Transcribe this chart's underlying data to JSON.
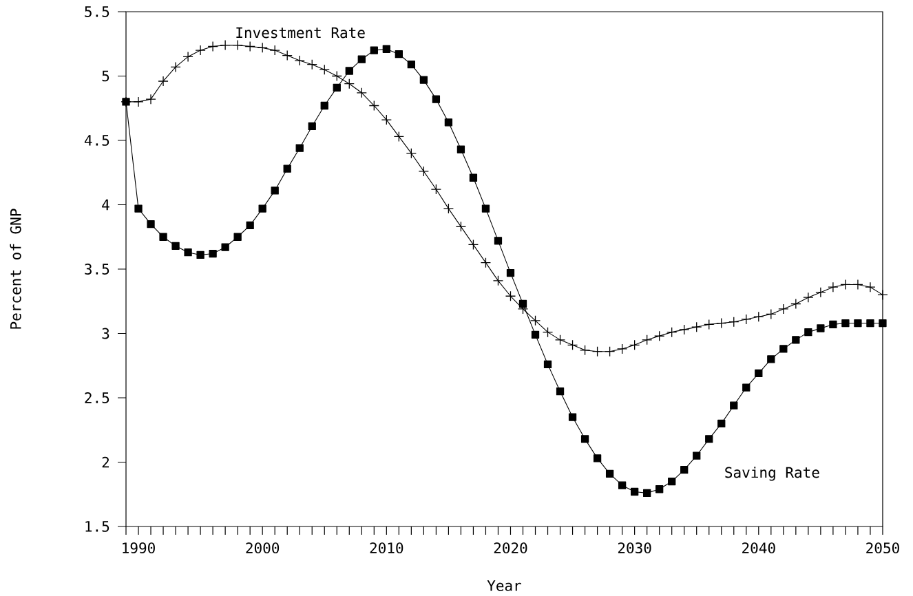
{
  "chart_data": {
    "type": "line",
    "xlabel": "Year",
    "ylabel": "Percent of GNP",
    "x": [
      1989,
      1990,
      1991,
      1992,
      1993,
      1994,
      1995,
      1996,
      1997,
      1998,
      1999,
      2000,
      2001,
      2002,
      2003,
      2004,
      2005,
      2006,
      2007,
      2008,
      2009,
      2010,
      2011,
      2012,
      2013,
      2014,
      2015,
      2016,
      2017,
      2018,
      2019,
      2020,
      2021,
      2022,
      2023,
      2024,
      2025,
      2026,
      2027,
      2028,
      2029,
      2030,
      2031,
      2032,
      2033,
      2034,
      2035,
      2036,
      2037,
      2038,
      2039,
      2040,
      2041,
      2042,
      2043,
      2044,
      2045,
      2046,
      2047,
      2048,
      2049,
      2050
    ],
    "xlim": [
      1989,
      2050
    ],
    "ylim": [
      1.5,
      5.5
    ],
    "xticks": [
      {
        "value": 1989,
        "label": null
      },
      1990,
      {
        "value": 1991,
        "label": null
      },
      {
        "value": 1992,
        "label": null
      },
      {
        "value": 1993,
        "label": null
      },
      {
        "value": 1994,
        "label": null
      },
      {
        "value": 1995,
        "label": null
      },
      {
        "value": 1996,
        "label": null
      },
      {
        "value": 1997,
        "label": null
      },
      {
        "value": 1998,
        "label": null
      },
      {
        "value": 1999,
        "label": null
      },
      2000,
      {
        "value": 2001,
        "label": null
      },
      {
        "value": 2002,
        "label": null
      },
      {
        "value": 2003,
        "label": null
      },
      {
        "value": 2004,
        "label": null
      },
      {
        "value": 2005,
        "label": null
      },
      {
        "value": 2006,
        "label": null
      },
      {
        "value": 2007,
        "label": null
      },
      {
        "value": 2008,
        "label": null
      },
      {
        "value": 2009,
        "label": null
      },
      2010,
      {
        "value": 2011,
        "label": null
      },
      {
        "value": 2012,
        "label": null
      },
      {
        "value": 2013,
        "label": null
      },
      {
        "value": 2014,
        "label": null
      },
      {
        "value": 2015,
        "label": null
      },
      {
        "value": 2016,
        "label": null
      },
      {
        "value": 2017,
        "label": null
      },
      {
        "value": 2018,
        "label": null
      },
      {
        "value": 2019,
        "label": null
      },
      2020,
      {
        "value": 2021,
        "label": null
      },
      {
        "value": 2022,
        "label": null
      },
      {
        "value": 2023,
        "label": null
      },
      {
        "value": 2024,
        "label": null
      },
      {
        "value": 2025,
        "label": null
      },
      {
        "value": 2026,
        "label": null
      },
      {
        "value": 2027,
        "label": null
      },
      {
        "value": 2028,
        "label": null
      },
      {
        "value": 2029,
        "label": null
      },
      2030,
      {
        "value": 2031,
        "label": null
      },
      {
        "value": 2032,
        "label": null
      },
      {
        "value": 2033,
        "label": null
      },
      {
        "value": 2034,
        "label": null
      },
      {
        "value": 2035,
        "label": null
      },
      {
        "value": 2036,
        "label": null
      },
      {
        "value": 2037,
        "label": null
      },
      {
        "value": 2038,
        "label": null
      },
      {
        "value": 2039,
        "label": null
      },
      2040,
      {
        "value": 2041,
        "label": null
      },
      {
        "value": 2042,
        "label": null
      },
      {
        "value": 2043,
        "label": null
      },
      {
        "value": 2044,
        "label": null
      },
      {
        "value": 2045,
        "label": null
      },
      {
        "value": 2046,
        "label": null
      },
      {
        "value": 2047,
        "label": null
      },
      {
        "value": 2048,
        "label": null
      },
      {
        "value": 2049,
        "label": null
      },
      2050
    ],
    "yticks": [
      1.5,
      2,
      2.5,
      3,
      3.5,
      4,
      4.5,
      5,
      5.5
    ],
    "series": [
      {
        "name": "Investment Rate",
        "color": "#000000",
        "marker": "cross",
        "values": [
          4.8,
          4.8,
          4.82,
          4.96,
          5.07,
          5.15,
          5.2,
          5.23,
          5.24,
          5.24,
          5.23,
          5.22,
          5.2,
          5.16,
          5.12,
          5.09,
          5.05,
          5.0,
          4.94,
          4.87,
          4.77,
          4.66,
          4.53,
          4.4,
          4.26,
          4.12,
          3.97,
          3.83,
          3.69,
          3.55,
          3.41,
          3.29,
          3.19,
          3.1,
          3.01,
          2.95,
          2.91,
          2.87,
          2.86,
          2.86,
          2.88,
          2.91,
          2.95,
          2.98,
          3.01,
          3.03,
          3.05,
          3.07,
          3.08,
          3.09,
          3.11,
          3.13,
          3.15,
          3.19,
          3.23,
          3.28,
          3.32,
          3.36,
          3.38,
          3.38,
          3.36,
          3.3
        ]
      },
      {
        "name": "Saving Rate",
        "color": "#000000",
        "marker": "square",
        "values": [
          4.8,
          3.97,
          3.85,
          3.75,
          3.68,
          3.63,
          3.61,
          3.62,
          3.67,
          3.75,
          3.84,
          3.97,
          4.11,
          4.28,
          4.44,
          4.61,
          4.77,
          4.91,
          5.04,
          5.13,
          5.2,
          5.21,
          5.17,
          5.09,
          4.97,
          4.82,
          4.64,
          4.43,
          4.21,
          3.97,
          3.72,
          3.47,
          3.23,
          2.99,
          2.76,
          2.55,
          2.35,
          2.18,
          2.03,
          1.91,
          1.82,
          1.77,
          1.76,
          1.79,
          1.85,
          1.94,
          2.05,
          2.18,
          2.3,
          2.44,
          2.58,
          2.69,
          2.8,
          2.88,
          2.95,
          3.01,
          3.04,
          3.07,
          3.08,
          3.08,
          3.08,
          3.08
        ]
      }
    ]
  }
}
